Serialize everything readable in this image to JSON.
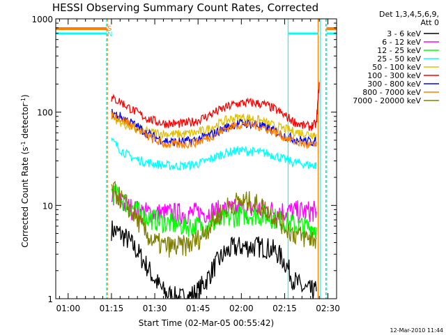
{
  "chart_data": {
    "type": "line",
    "title": "HESSI Observing Summary Count Rates, Corrected",
    "xlabel": "Start Time (02-Mar-05 00:55:42)",
    "ylabel_main": "Corrected Count Rate (s",
    "ylabel_sup1": "-1",
    "ylabel_mid": " detector",
    "ylabel_sup2": "-1",
    "ylabel_end": ")",
    "yscale": "log",
    "ylim": [
      1,
      1000
    ],
    "xlim_minutes": [
      55.7,
      153
    ],
    "x_ticks": [
      {
        "label": "01:00",
        "min": 60
      },
      {
        "label": "01:15",
        "min": 75
      },
      {
        "label": "01:30",
        "min": 90
      },
      {
        "label": "01:45",
        "min": 105
      },
      {
        "label": "02:00",
        "min": 120
      },
      {
        "label": "02:15",
        "min": 135
      },
      {
        "label": "02:30",
        "min": 150
      }
    ],
    "y_ticks": [
      {
        "label": "1",
        "value": 1
      },
      {
        "label": "10",
        "value": 10
      },
      {
        "label": "100",
        "value": 100
      },
      {
        "label": "1000",
        "value": 1000
      }
    ],
    "legend_title_1": "Det 1,3,4,5,6,9,",
    "legend_title_2": "Att 0",
    "series": [
      {
        "name": "3 - 6 keV",
        "color": "#000000",
        "x": [
          75,
          78,
          81,
          84,
          87,
          90,
          93,
          96,
          99,
          102,
          105,
          108,
          111,
          114,
          117,
          120,
          123,
          126,
          129,
          132,
          135,
          138,
          141,
          144,
          146
        ],
        "y": [
          5.5,
          5,
          4.2,
          3.2,
          2.3,
          1.6,
          1.2,
          1.05,
          1,
          1.05,
          1.2,
          1.6,
          2.3,
          3,
          3.5,
          3.6,
          3.6,
          3.6,
          3.5,
          3.2,
          2.5,
          1.6,
          1.3,
          1.2,
          1.2
        ]
      },
      {
        "name": "6 - 12 keV",
        "color": "#ff00ff",
        "x": [
          75,
          78,
          81,
          84,
          87,
          90,
          93,
          96,
          99,
          102,
          105,
          108,
          111,
          114,
          117,
          120,
          123,
          126,
          129,
          132,
          135,
          138,
          141,
          144,
          146
        ],
        "y": [
          13,
          11,
          9.5,
          8.7,
          8.4,
          8.2,
          8.2,
          8.2,
          8.2,
          8.2,
          8.3,
          8.4,
          8.6,
          8.8,
          9,
          9.1,
          9.1,
          9,
          8.9,
          8.8,
          8.7,
          8.6,
          8.6,
          8.6,
          8.6
        ]
      },
      {
        "name": "12 - 25 keV",
        "color": "#00ff00",
        "x": [
          75,
          78,
          81,
          84,
          87,
          90,
          93,
          96,
          99,
          102,
          105,
          108,
          111,
          114,
          117,
          120,
          123,
          126,
          129,
          132,
          135,
          138,
          141,
          144,
          146
        ],
        "y": [
          14,
          12,
          10,
          8.5,
          7.5,
          7,
          6.6,
          6.3,
          6.1,
          6,
          6,
          6.1,
          6.5,
          7,
          7.5,
          7.9,
          8,
          7.9,
          7.6,
          7.2,
          6.7,
          6.2,
          6,
          5.8,
          5.8
        ]
      },
      {
        "name": "25 - 50 keV",
        "color": "#00ffff",
        "x": [
          75,
          78,
          81,
          84,
          87,
          90,
          93,
          96,
          99,
          102,
          105,
          108,
          111,
          114,
          117,
          120,
          123,
          126,
          129,
          132,
          135,
          138,
          141,
          144,
          146
        ],
        "y": [
          50,
          40,
          34,
          31,
          29,
          28,
          27,
          26.5,
          26.5,
          27,
          28,
          30,
          33,
          36,
          38,
          39,
          38,
          37,
          36,
          34,
          31,
          29,
          28,
          27,
          27
        ]
      },
      {
        "name": "50 - 100 keV",
        "color": "#e0c000",
        "x": [
          75,
          78,
          81,
          84,
          87,
          90,
          93,
          96,
          99,
          102,
          105,
          108,
          111,
          114,
          117,
          120,
          123,
          126,
          129,
          132,
          135,
          138,
          141,
          144,
          146
        ],
        "y": [
          90,
          78,
          70,
          65,
          62,
          60,
          59,
          58,
          58,
          59,
          61,
          65,
          72,
          80,
          86,
          88,
          86,
          82,
          76,
          70,
          66,
          62,
          60,
          58,
          58
        ]
      },
      {
        "name": "100 - 300 keV",
        "color": "#ff0000",
        "x": [
          75,
          78,
          81,
          84,
          87,
          90,
          93,
          96,
          99,
          102,
          105,
          108,
          111,
          114,
          117,
          120,
          123,
          126,
          129,
          132,
          135,
          138,
          141,
          144,
          146,
          147
        ],
        "y": [
          140,
          130,
          112,
          98,
          87,
          80,
          76,
          75,
          75,
          77,
          82,
          90,
          100,
          110,
          120,
          125,
          126,
          124,
          118,
          106,
          92,
          80,
          72,
          70,
          75,
          210
        ]
      },
      {
        "name": "300 - 800 keV",
        "color": "#0000ff",
        "x": [
          75,
          78,
          81,
          84,
          87,
          90,
          93,
          96,
          99,
          102,
          105,
          108,
          111,
          114,
          117,
          120,
          123,
          126,
          129,
          132,
          135,
          138,
          141,
          144,
          146
        ],
        "y": [
          98,
          90,
          80,
          70,
          60,
          54,
          50,
          48,
          48,
          49,
          51,
          55,
          60,
          67,
          73,
          76,
          75,
          72,
          67,
          62,
          56,
          52,
          50,
          48,
          48
        ]
      },
      {
        "name": "800 - 7000 keV",
        "color": "#ff8000",
        "x": [
          75,
          78,
          81,
          84,
          87,
          90,
          93,
          96,
          99,
          102,
          105,
          108,
          111,
          114,
          117,
          120,
          123,
          126,
          129,
          132,
          135,
          138,
          141,
          144,
          146
        ],
        "y": [
          94,
          86,
          76,
          66,
          56,
          50,
          46,
          45,
          45,
          46,
          48,
          52,
          58,
          65,
          71,
          74,
          74,
          71,
          66,
          60,
          54,
          49,
          46,
          44,
          44
        ]
      },
      {
        "name": "7000 - 20000 keV",
        "color": "#808000",
        "x": [
          75,
          78,
          81,
          84,
          87,
          90,
          93,
          96,
          99,
          102,
          105,
          108,
          111,
          114,
          117,
          120,
          123,
          126,
          129,
          132,
          135,
          138,
          141,
          144,
          146
        ],
        "y": [
          15,
          12,
          9.5,
          7,
          5,
          4,
          3.7,
          3.6,
          3.6,
          3.8,
          4.3,
          5.5,
          7.2,
          9,
          10.5,
          11,
          10.8,
          10,
          8.8,
          7.5,
          6,
          5,
          4.6,
          4.4,
          4.4
        ]
      }
    ]
  },
  "markers": {
    "s_label": "S",
    "n_label": "N",
    "s_color": "#ff8000",
    "n_color": "#00ffff"
  },
  "footer": {
    "timestamp": "12-Mar-2010 11:44"
  }
}
